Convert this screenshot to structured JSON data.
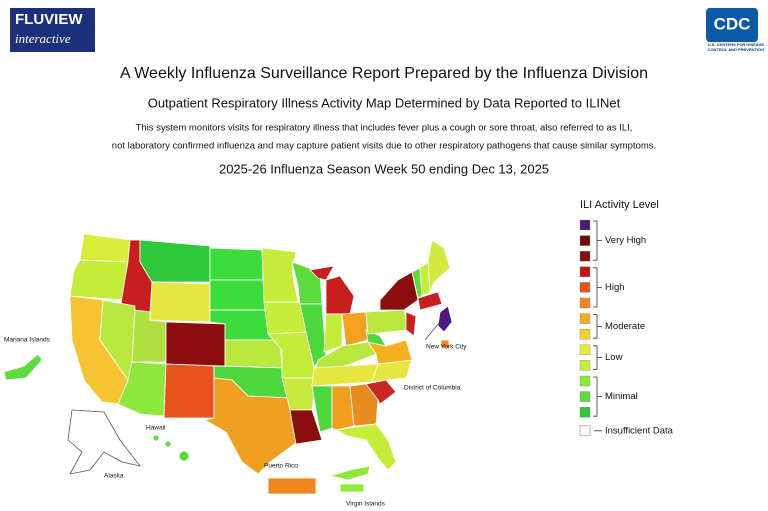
{
  "header": {
    "logo_left_top": "FLUVIEW",
    "logo_left_bottom": "interactive",
    "logo_right": "CDC",
    "logo_right_caption": "U.S. CENTERS FOR DISEASE CONTROL AND PREVENTION"
  },
  "title": "A Weekly Influenza Surveillance Report Prepared by the Influenza Division",
  "subtitle": "Outpatient Respiratory Illness Activity Map Determined by Data Reported to ILINet",
  "description": [
    "This system monitors visits for respiratory illness that includes fever plus a cough or sore throat, also referred to as ILI,",
    "not laboratory confirmed influenza and may capture patient visits due to other respiratory pathogens that cause similar symptoms."
  ],
  "week": "2025-26 Influenza Season Week 50 ending Dec 13, 2025",
  "legend": {
    "title": "ILI Activity Level",
    "colors": [
      "#4b1a7a",
      "#6e0a0a",
      "#8e0d0d",
      "#c01414",
      "#e8531c",
      "#f0861e",
      "#f5ab24",
      "#f5d22e",
      "#e6ec3a",
      "#c6ec3a",
      "#8ee83a",
      "#5cdc3c",
      "#2ec83a"
    ],
    "groups": [
      "Very High",
      "High",
      "Moderate",
      "Low",
      "Minimal"
    ],
    "insufficient": "Insufficient Data"
  },
  "map_labels": [
    "Mariana Islands",
    "Hawaii",
    "Alaska",
    "Puerto Rico",
    "Virgin Islands",
    "New York City",
    "District of Columbia"
  ]
}
